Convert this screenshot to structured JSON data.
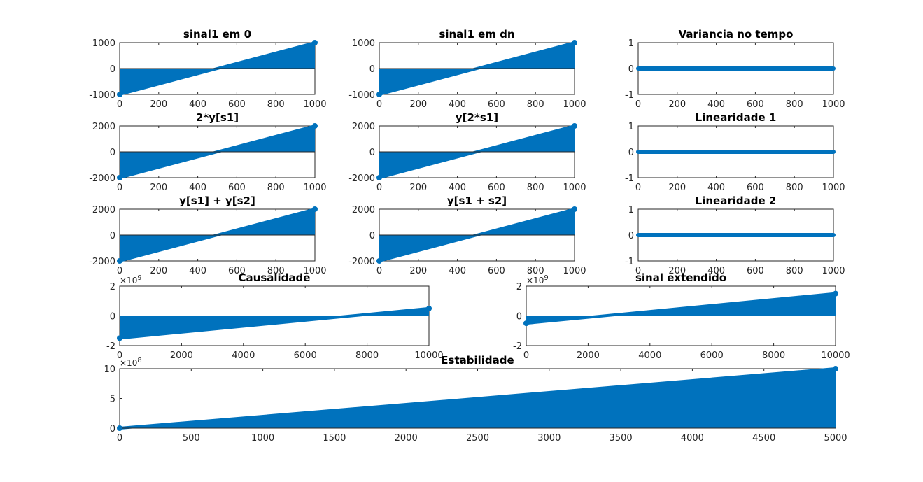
{
  "figure": {
    "background": "#ffffff",
    "series_color": "#0072BD"
  },
  "chart_data": [
    {
      "type": "stem",
      "title": "sinal1 em 0",
      "xlabel": "",
      "ylabel": "",
      "xlim": [
        0,
        1000
      ],
      "ylim": [
        -1000,
        1000
      ],
      "xticks": [
        0,
        200,
        400,
        600,
        800,
        1000
      ],
      "yticks": [
        -1000,
        0,
        1000
      ],
      "series": [
        {
          "x_range": [
            0,
            1000
          ],
          "y_start": -1000,
          "y_end": 1000
        }
      ]
    },
    {
      "type": "stem",
      "title": "sinal1 em dn",
      "xlabel": "",
      "ylabel": "",
      "xlim": [
        0,
        1000
      ],
      "ylim": [
        -1000,
        1000
      ],
      "xticks": [
        0,
        200,
        400,
        600,
        800,
        1000
      ],
      "yticks": [
        -1000,
        0,
        1000
      ],
      "series": [
        {
          "x_range": [
            0,
            1000
          ],
          "y_start": -1000,
          "y_end": 1000
        }
      ]
    },
    {
      "type": "stem",
      "title": "Variancia no tempo",
      "xlabel": "",
      "ylabel": "",
      "xlim": [
        0,
        1000
      ],
      "ylim": [
        -1,
        1
      ],
      "xticks": [
        0,
        200,
        400,
        600,
        800,
        1000
      ],
      "yticks": [
        -1,
        0,
        1
      ],
      "series": [
        {
          "x_range": [
            0,
            1000
          ],
          "y_start": 0,
          "y_end": 0
        }
      ]
    },
    {
      "type": "stem",
      "title": "2*y[s1]",
      "xlabel": "",
      "ylabel": "",
      "xlim": [
        0,
        1000
      ],
      "ylim": [
        -2000,
        2000
      ],
      "xticks": [
        0,
        200,
        400,
        600,
        800,
        1000
      ],
      "yticks": [
        -2000,
        0,
        2000
      ],
      "series": [
        {
          "x_range": [
            0,
            1000
          ],
          "y_start": -2000,
          "y_end": 2000
        }
      ]
    },
    {
      "type": "stem",
      "title": "y[2*s1]",
      "xlabel": "",
      "ylabel": "",
      "xlim": [
        0,
        1000
      ],
      "ylim": [
        -2000,
        2000
      ],
      "xticks": [
        0,
        200,
        400,
        600,
        800,
        1000
      ],
      "yticks": [
        -2000,
        0,
        2000
      ],
      "series": [
        {
          "x_range": [
            0,
            1000
          ],
          "y_start": -2000,
          "y_end": 2000
        }
      ]
    },
    {
      "type": "stem",
      "title": "Linearidade 1",
      "xlabel": "",
      "ylabel": "",
      "xlim": [
        0,
        1000
      ],
      "ylim": [
        -1,
        1
      ],
      "xticks": [
        0,
        200,
        400,
        600,
        800,
        1000
      ],
      "yticks": [
        -1,
        0,
        1
      ],
      "series": [
        {
          "x_range": [
            0,
            1000
          ],
          "y_start": 0,
          "y_end": 0
        }
      ]
    },
    {
      "type": "stem",
      "title": "y[s1] + y[s2]",
      "xlabel": "",
      "ylabel": "",
      "xlim": [
        0,
        1000
      ],
      "ylim": [
        -2000,
        2000
      ],
      "xticks": [
        0,
        200,
        400,
        600,
        800,
        1000
      ],
      "yticks": [
        -2000,
        0,
        2000
      ],
      "series": [
        {
          "x_range": [
            0,
            1000
          ],
          "y_start": -2000,
          "y_end": 2000
        }
      ]
    },
    {
      "type": "stem",
      "title": "y[s1 + s2]",
      "xlabel": "",
      "ylabel": "",
      "xlim": [
        0,
        1000
      ],
      "ylim": [
        -2000,
        2000
      ],
      "xticks": [
        0,
        200,
        400,
        600,
        800,
        1000
      ],
      "yticks": [
        -2000,
        0,
        2000
      ],
      "series": [
        {
          "x_range": [
            0,
            1000
          ],
          "y_start": -2000,
          "y_end": 2000
        }
      ]
    },
    {
      "type": "stem",
      "title": "Linearidade 2",
      "xlabel": "",
      "ylabel": "",
      "xlim": [
        0,
        1000
      ],
      "ylim": [
        -1,
        1
      ],
      "xticks": [
        0,
        200,
        400,
        600,
        800,
        1000
      ],
      "yticks": [
        -1,
        0,
        1
      ],
      "series": [
        {
          "x_range": [
            0,
            1000
          ],
          "y_start": 0,
          "y_end": 0
        }
      ]
    },
    {
      "type": "stem",
      "title": "Causalidade",
      "xlabel": "",
      "ylabel": "",
      "xlim": [
        0,
        10000
      ],
      "ylim": [
        -2,
        2
      ],
      "y_exponent": "9",
      "xticks": [
        0,
        2000,
        4000,
        6000,
        8000,
        10000
      ],
      "yticks": [
        -2,
        0,
        2
      ],
      "series": [
        {
          "x_range": [
            0,
            10000
          ],
          "y_start": -1.5,
          "y_end": 0.5
        }
      ]
    },
    {
      "type": "stem",
      "title": "sinal extendido",
      "xlabel": "",
      "ylabel": "",
      "xlim": [
        0,
        10000
      ],
      "ylim": [
        -2,
        2
      ],
      "y_exponent": "9",
      "xticks": [
        0,
        2000,
        4000,
        6000,
        8000,
        10000
      ],
      "yticks": [
        -2,
        0,
        2
      ],
      "series": [
        {
          "x_range": [
            0,
            10000
          ],
          "y_start": -0.5,
          "y_end": 1.5
        }
      ]
    },
    {
      "type": "stem",
      "title": "Estabilidade",
      "xlabel": "",
      "ylabel": "",
      "xlim": [
        0,
        5000
      ],
      "ylim": [
        0,
        10
      ],
      "y_exponent": "8",
      "xticks": [
        0,
        500,
        1000,
        1500,
        2000,
        2500,
        3000,
        3500,
        4000,
        4500,
        5000
      ],
      "yticks": [
        0,
        5,
        10
      ],
      "series": [
        {
          "x_range": [
            0,
            5000
          ],
          "y_start": 0,
          "y_end": 10
        }
      ]
    }
  ]
}
